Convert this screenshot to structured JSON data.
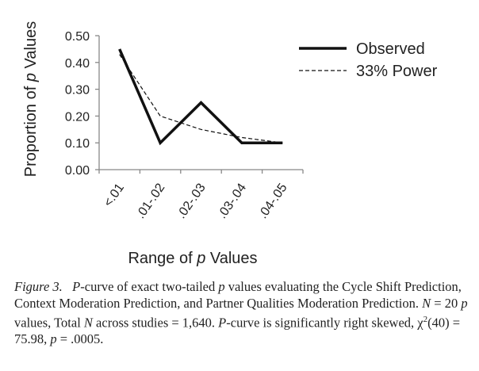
{
  "chart_data": {
    "type": "line",
    "categories": [
      "<.01",
      ".01-.02",
      ".02-.03",
      ".03-.04",
      ".04-.05"
    ],
    "series": [
      {
        "name": "Observed",
        "values": [
          0.45,
          0.1,
          0.25,
          0.1,
          0.1
        ],
        "style": "solid",
        "color": "#111111"
      },
      {
        "name": "33% Power",
        "values": [
          0.43,
          0.2,
          0.15,
          0.12,
          0.1
        ],
        "style": "dashed",
        "color": "#111111"
      }
    ],
    "ylim": [
      0,
      0.5
    ],
    "yticks": [
      "0.00",
      "0.10",
      "0.20",
      "0.30",
      "0.40",
      "0.50"
    ],
    "ylabel": {
      "pre": "Proportion of ",
      "italic": "p",
      "post": " Values"
    },
    "xlabel": {
      "pre": "Range of ",
      "italic": "p",
      "post": " Values"
    },
    "legend_position": "top-right",
    "grid": false
  },
  "caption": {
    "figure_label": "Figure 3.",
    "p_italic": "P",
    "line1_rest": "-curve of exact two-tailed ",
    "p2": "p",
    "line1_end": " values evaluating the Cycle Shift Prediction, Context Moderation Prediction, and Partner Qualities Moderation Prediction. ",
    "N": "N",
    "n_text": " = 20 ",
    "p3": "p",
    "values_text": " values, Total ",
    "N2": "N",
    "across_text": " across studies = 1,640. ",
    "P2": "P",
    "skew_text": "-curve is significantly right skewed, χ",
    "sup": "2",
    "chi_text": "(40) = 75.98, ",
    "p4": "p",
    "p_val": " = .0005."
  }
}
